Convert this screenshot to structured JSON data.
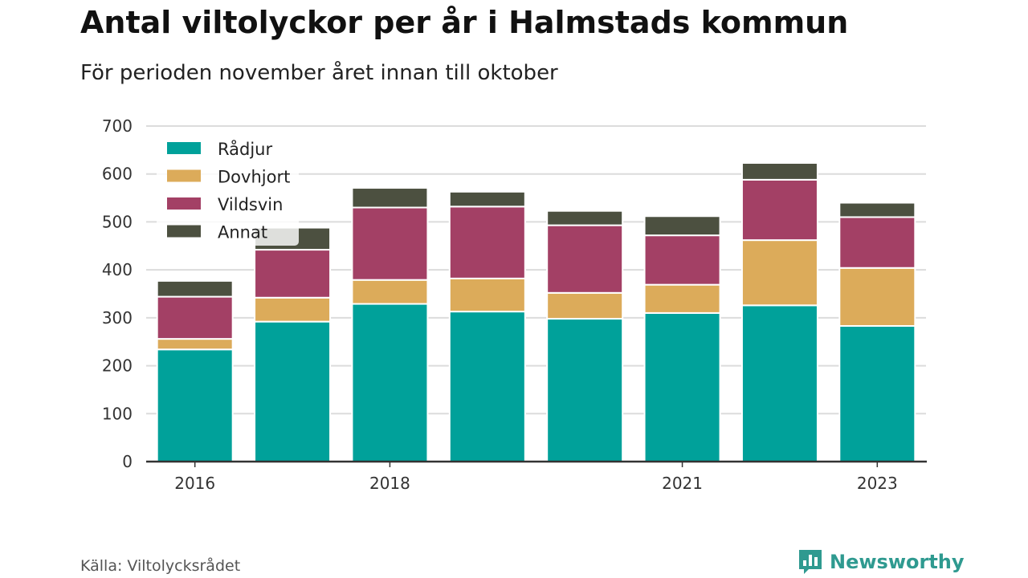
{
  "header": {
    "title": "Antal viltolyckor per år i Halmstads kommun",
    "subtitle": "För perioden november året innan till oktober"
  },
  "footer": {
    "source": "Källa: Viltolycksrådet",
    "brand": "Newsworthy",
    "brand_icon": "bar-chart-speech-bubble-icon"
  },
  "colors": {
    "Rådjur": "#00a19a",
    "Dovhjort": "#dcab5a",
    "Vildsvin": "#a34065",
    "Annat": "#4c5040",
    "grid": "#dcdcdc",
    "axis": "#333333",
    "brand": "#2f9a90"
  },
  "chart_data": {
    "type": "bar",
    "stacked": true,
    "title": "Antal viltolyckor per år i Halmstads kommun",
    "subtitle": "För perioden november året innan till oktober",
    "categories": [
      "2016",
      "2017",
      "2018",
      "2019",
      "2020",
      "2021",
      "2022",
      "2023"
    ],
    "x_tick_labels": [
      "2016",
      "",
      "2018",
      "",
      "",
      "2021",
      "",
      "2023"
    ],
    "series": [
      {
        "name": "Rådjur",
        "values": [
          234,
          292,
          329,
          313,
          298,
          310,
          326,
          283
        ]
      },
      {
        "name": "Dovhjort",
        "values": [
          22,
          50,
          50,
          69,
          54,
          59,
          136,
          121
        ]
      },
      {
        "name": "Vildsvin",
        "values": [
          88,
          100,
          151,
          150,
          141,
          103,
          126,
          106
        ]
      },
      {
        "name": "Annat",
        "values": [
          33,
          46,
          41,
          31,
          30,
          40,
          35,
          30
        ]
      }
    ],
    "ylim": [
      0,
      700
    ],
    "y_ticks": [
      0,
      100,
      200,
      300,
      400,
      500,
      600,
      700
    ],
    "grid": true,
    "legend_position": "top-left"
  }
}
